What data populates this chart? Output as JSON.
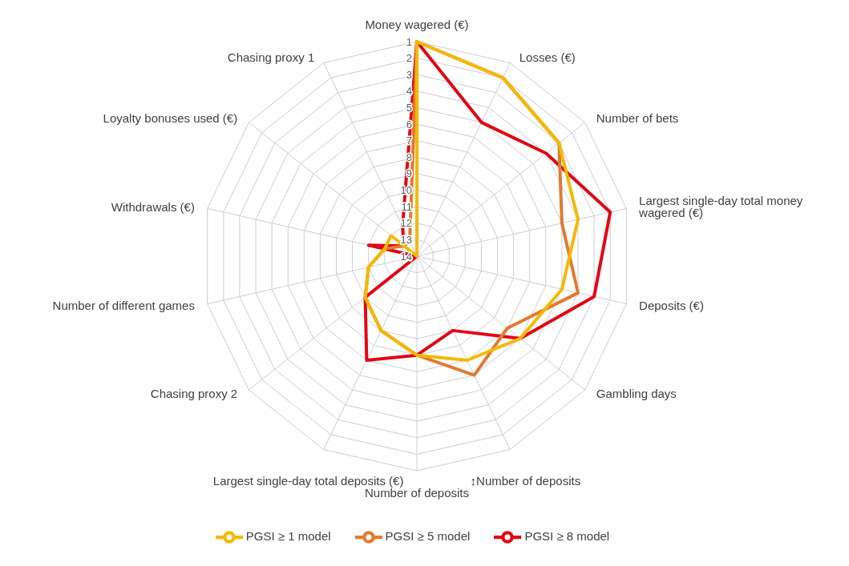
{
  "chart_data": {
    "type": "radar",
    "categories": [
      "Money wagered (€)",
      "Losses (€)",
      "Number of bets",
      "Largest single-day total money wagered (€)",
      "Deposits (€)",
      "Gambling days",
      "↕Number of deposits",
      "Number of deposits",
      "Largest single-day total deposits (€)",
      "Chasing proxy 2",
      "Number of different games",
      "Withdrawals (€)",
      "Loyalty bonuses used (€)",
      "Chasing proxy 1"
    ],
    "series": [
      {
        "name": "PGSI ≥ 8 model",
        "color": "#e30613",
        "values": [
          1,
          5,
          4,
          2,
          3,
          6,
          9,
          8,
          7,
          10,
          14,
          11,
          13,
          12
        ]
      },
      {
        "name": "PGSI ≥ 5 model",
        "color": "#e07b30",
        "values": [
          1,
          2,
          3,
          5,
          4,
          7,
          6,
          8,
          9,
          10,
          11,
          12,
          13,
          13
        ]
      },
      {
        "name": "PGSI ≥ 1 model",
        "color": "#f5b800",
        "values": [
          1,
          2,
          3,
          4,
          5,
          6,
          7,
          8,
          9,
          10,
          11,
          12,
          12,
          14
        ]
      }
    ],
    "ylim": [
      14,
      1
    ],
    "yticks": [
      1,
      2,
      3,
      4,
      5,
      6,
      7,
      8,
      9,
      10,
      11,
      12,
      13,
      14
    ],
    "grid": true,
    "legend": "bottom",
    "marker": "none"
  }
}
